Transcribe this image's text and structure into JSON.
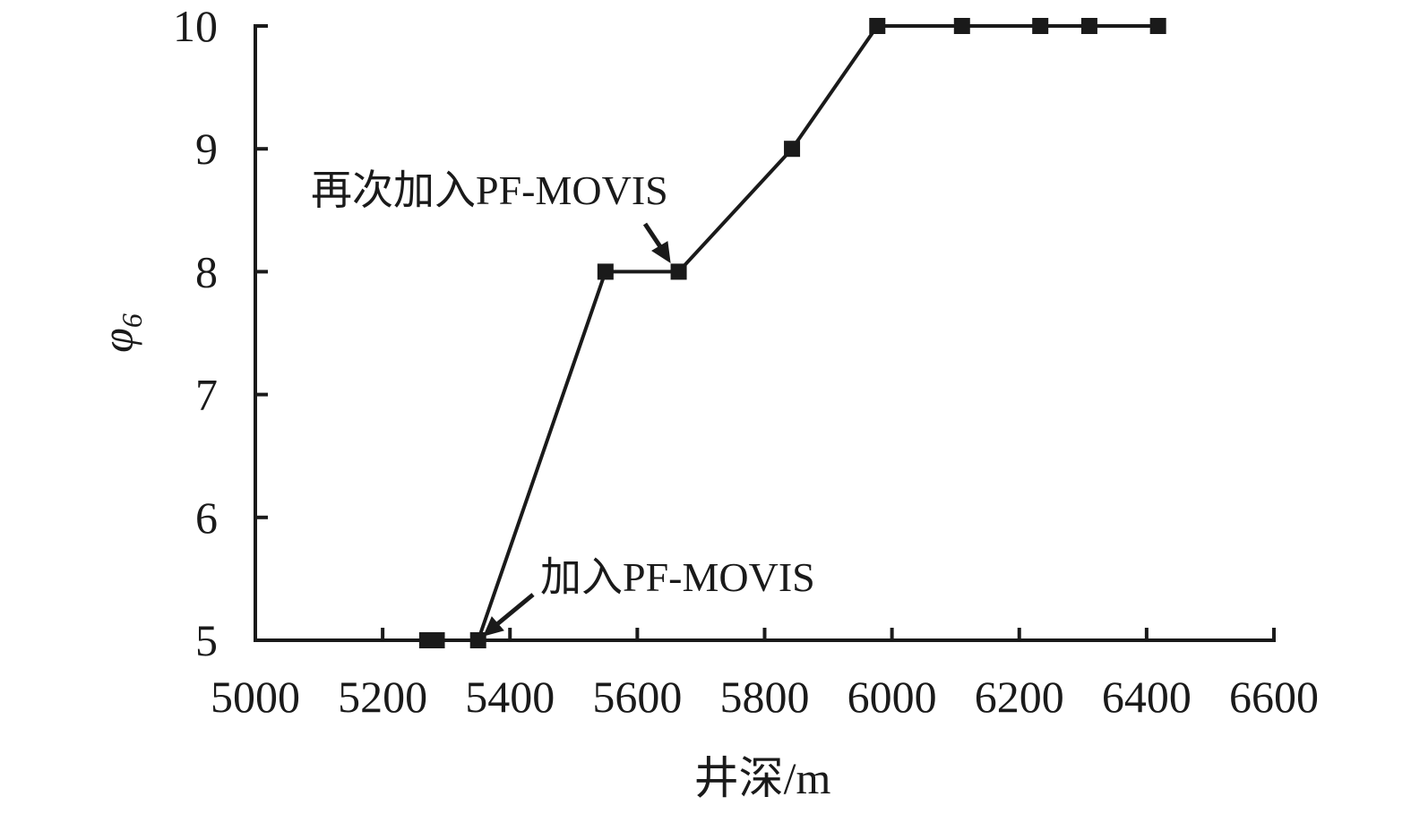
{
  "chart_data": {
    "type": "line",
    "x_label": "井深/m",
    "y_label_symbol": "φ",
    "y_label_subscript": "6",
    "x": [
      5270,
      5285,
      5350,
      5550,
      5665,
      5843,
      5977,
      6110,
      6233,
      6310,
      6418
    ],
    "series": [
      {
        "color": "#1a1a1a",
        "values": [
          5,
          5,
          5,
          8,
          8,
          9,
          10,
          10,
          10,
          10,
          10
        ]
      }
    ],
    "xlim": [
      5000,
      6600
    ],
    "xticks": [
      5000,
      5200,
      5400,
      5600,
      5800,
      6000,
      6200,
      6400,
      6600
    ],
    "ylim": [
      5,
      10
    ],
    "yticks": [
      5,
      6,
      7,
      8,
      9,
      10
    ],
    "grid": false,
    "annotations": [
      "再次加入PF-MOVIS",
      "加入PF-MOVIS"
    ]
  }
}
